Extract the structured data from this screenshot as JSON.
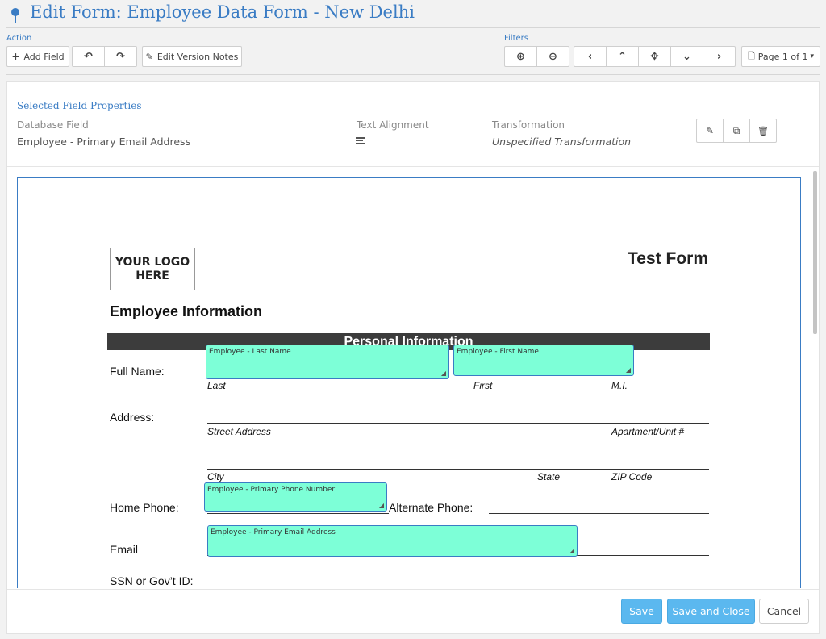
{
  "header": {
    "title": "Edit Form: Employee Data Form - New Delhi",
    "pin_icon": "map-pin-icon"
  },
  "toolbar": {
    "action_label": "Action",
    "filters_label": "Filters",
    "add_field_label": "Add Field",
    "add_field_icon": "+",
    "undo_icon": "↶",
    "redo_icon": "↷",
    "edit_notes_label": "Edit Version Notes",
    "edit_notes_icon": "✎",
    "zoom_in_icon": "⊕",
    "zoom_out_icon": "⊖",
    "nav_left_icon": "‹",
    "nav_up_icon": "⌃",
    "nav_center_icon": "✥",
    "nav_down_icon": "⌄",
    "nav_right_icon": "›",
    "page_label": "Page 1 of 1",
    "page_icon": "🗋",
    "page_caret": "▾"
  },
  "properties": {
    "title": "Selected Field Properties",
    "database_field_label": "Database Field",
    "database_field_value": "Employee - Primary Email Address",
    "alignment_label": "Text Alignment",
    "transformation_label": "Transformation",
    "transformation_value": "Unspecified Transformation",
    "edit_icon": "✎",
    "copy_icon": "⧉",
    "delete_icon": "🗑"
  },
  "document": {
    "logo_text": "YOUR LOGO\nHERE",
    "form_title": "Test Form",
    "section_title": "Employee Information",
    "band_title": "Personal Information",
    "labels": {
      "full_name": "Full Name:",
      "address": "Address:",
      "home_phone": "Home Phone:",
      "alternate_phone": "Alternate Phone:",
      "email": "Email",
      "ssn": "SSN or Gov’t ID:"
    },
    "sublabels": {
      "last": "Last",
      "first": "First",
      "mi": "M.I.",
      "street": "Street Address",
      "apt": "Apartment/Unit #",
      "city": "City",
      "state": "State",
      "zip": "ZIP Code"
    },
    "fields": {
      "last_name": "Employee - Last Name",
      "first_name": "Employee - First Name",
      "phone": "Employee - Primary Phone Number",
      "email": "Employee - Primary Email Address"
    },
    "resize_glyph": "◢"
  },
  "footer": {
    "save_label": "Save",
    "save_close_label": "Save and Close",
    "cancel_label": "Cancel"
  },
  "colors": {
    "accent": "#3a7cc4",
    "field_fill": "#7dffd7",
    "primary_button": "#5bb8ef",
    "band": "#3c3c3c"
  }
}
